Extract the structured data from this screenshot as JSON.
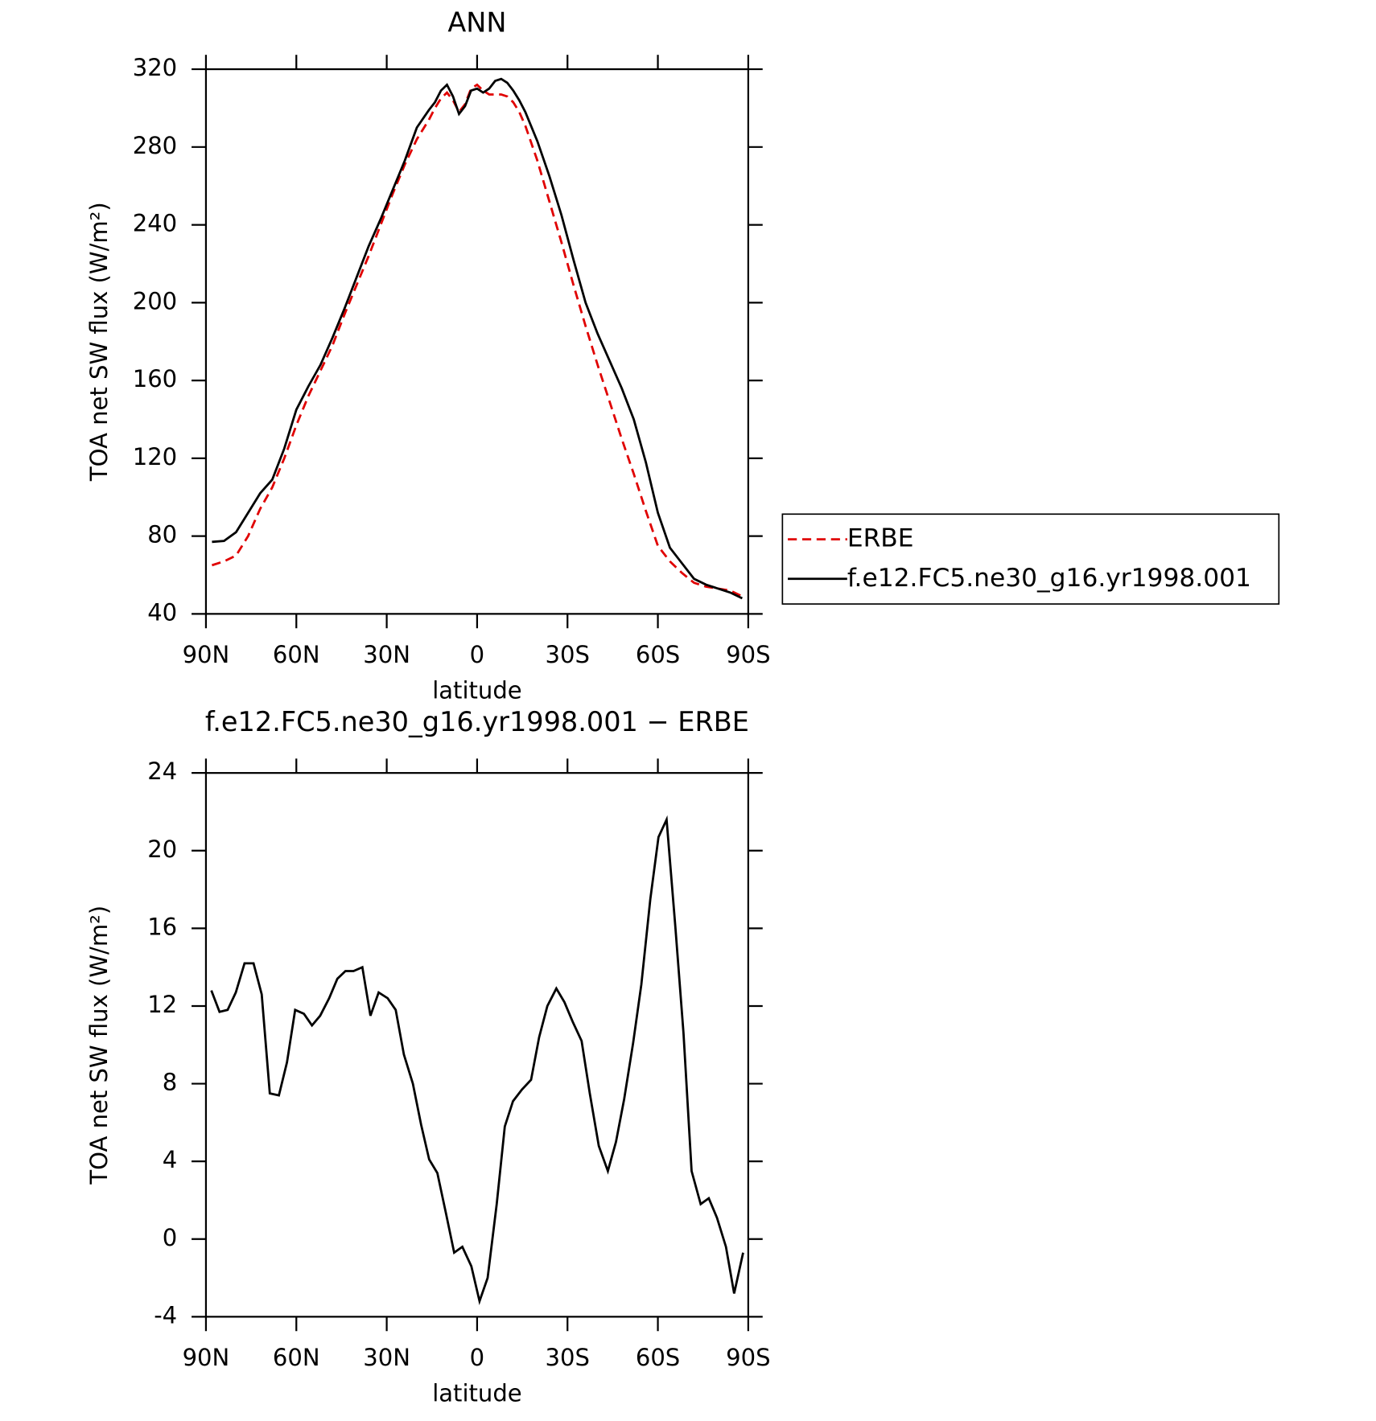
{
  "chart_data": [
    {
      "type": "line",
      "title": "ANN",
      "x_label": "latitude",
      "y_label": "TOA net SW flux (W/m²)",
      "xlim": [
        90,
        -90
      ],
      "xticks": [
        {
          "value": 90,
          "label": "90N"
        },
        {
          "value": 60,
          "label": "60N"
        },
        {
          "value": 30,
          "label": "30N"
        },
        0,
        {
          "value": -30,
          "label": "30S"
        },
        {
          "value": -60,
          "label": "60S"
        },
        {
          "value": -90,
          "label": "90S"
        }
      ],
      "ylim": [
        40,
        320
      ],
      "yticks": [
        40,
        80,
        120,
        160,
        200,
        240,
        280,
        320
      ],
      "legend": "right",
      "x": [
        88,
        84,
        80,
        76,
        72,
        68,
        64,
        60,
        56,
        52,
        48,
        44,
        40,
        36,
        32,
        28,
        24,
        20,
        16,
        14,
        12,
        10,
        8,
        6,
        4,
        2,
        0,
        -2,
        -4,
        -6,
        -8,
        -10,
        -12,
        -14,
        -16,
        -20,
        -24,
        -28,
        -32,
        -36,
        -40,
        -44,
        -48,
        -52,
        -56,
        -60,
        -64,
        -68,
        -72,
        -76,
        -80,
        -84,
        -88
      ],
      "series": [
        {
          "name": "ERBE",
          "color": "#e00000",
          "dash": "dashed",
          "values": [
            65,
            67,
            70,
            80,
            94,
            105,
            120,
            137,
            152,
            165,
            178,
            194,
            209,
            224,
            240,
            256,
            271,
            284,
            294,
            300,
            305,
            308,
            304,
            298,
            302,
            310,
            312,
            309,
            307,
            307,
            307,
            306,
            303,
            298,
            291,
            273,
            252,
            231,
            209,
            188,
            168,
            149,
            130,
            112,
            93,
            75,
            67,
            61,
            56,
            54,
            53,
            52,
            49
          ]
        },
        {
          "name": "f.e12.FC5.ne30_g16.yr1998.001",
          "color": "#000000",
          "dash": "solid",
          "values": [
            77,
            77.5,
            82,
            92,
            102,
            109,
            125,
            145,
            157,
            168,
            182,
            197,
            213,
            229,
            243,
            258,
            273,
            290,
            299,
            303,
            309,
            312,
            306,
            297,
            301,
            309,
            310,
            308,
            310,
            314,
            315,
            313,
            309,
            304,
            298,
            283,
            265,
            245,
            222,
            200,
            184,
            170,
            156,
            140,
            118,
            92,
            74,
            66,
            58,
            55,
            53,
            51,
            48
          ]
        }
      ]
    },
    {
      "type": "line",
      "title": "f.e12.FC5.ne30_g16.yr1998.001 − ERBE",
      "x_label": "latitude",
      "y_label": "TOA net SW flux (W/m²)",
      "xlim": [
        90,
        -90
      ],
      "xticks": [
        {
          "value": 90,
          "label": "90N"
        },
        {
          "value": 60,
          "label": "60N"
        },
        {
          "value": 30,
          "label": "30N"
        },
        0,
        {
          "value": -30,
          "label": "30S"
        },
        {
          "value": -60,
          "label": "60S"
        },
        {
          "value": -90,
          "label": "90S"
        }
      ],
      "ylim": [
        -4,
        24
      ],
      "yticks": [
        -4,
        0,
        4,
        8,
        12,
        16,
        20,
        24
      ],
      "x": [
        88.2,
        85.5,
        82.8,
        80.1,
        77.2,
        74.2,
        71.5,
        68.8,
        65.8,
        63.1,
        60.4,
        57.5,
        54.8,
        52.1,
        49.1,
        46.4,
        43.7,
        41.0,
        38.1,
        35.4,
        32.7,
        29.7,
        27.0,
        24.3,
        21.3,
        18.6,
        15.9,
        13.2,
        10.3,
        7.6,
        4.9,
        1.9,
        -0.8,
        -3.5,
        -6.5,
        -9.2,
        -11.9,
        -14.9,
        -17.9,
        -20.6,
        -23.3,
        -26.3,
        -29.0,
        -31.7,
        -34.7,
        -37.4,
        -40.4,
        -43.4,
        -46.1,
        -48.8,
        -51.8,
        -54.5,
        -57.5,
        -60.2,
        -62.9,
        -65.8,
        -68.5,
        -71.2,
        -74.2,
        -76.9,
        -79.6,
        -82.6,
        -85.3,
        -88.3
      ],
      "series": [
        {
          "color": "#000000",
          "dash": "solid",
          "values": [
            12.8,
            11.7,
            11.8,
            12.7,
            14.2,
            14.2,
            12.6,
            7.5,
            7.4,
            9.1,
            11.8,
            11.6,
            11.0,
            11.5,
            12.4,
            13.4,
            13.8,
            13.8,
            14.0,
            11.5,
            12.7,
            12.4,
            11.8,
            9.5,
            8.0,
            5.9,
            4.1,
            3.4,
            1.3,
            -0.7,
            -0.4,
            -1.4,
            -3.2,
            -2.0,
            1.8,
            5.8,
            7.1,
            7.7,
            8.2,
            10.4,
            12.0,
            12.9,
            12.2,
            11.2,
            10.2,
            7.5,
            4.8,
            3.5,
            5.0,
            7.2,
            10.1,
            13.1,
            17.5,
            20.7,
            21.6,
            16.1,
            10.6,
            3.5,
            1.8,
            2.1,
            1.1,
            -0.4,
            -2.8,
            -0.7
          ]
        }
      ]
    }
  ]
}
